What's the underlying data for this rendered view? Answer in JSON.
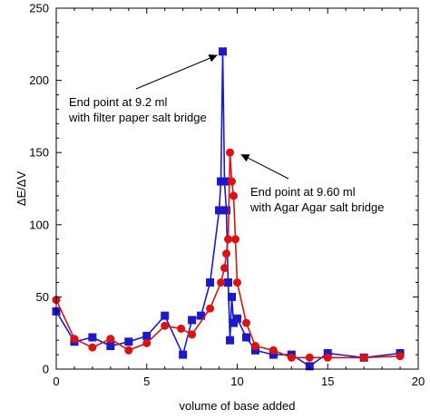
{
  "chart_data": {
    "type": "line",
    "title": "",
    "xlabel": "volume of base added",
    "ylabel": "ΔE/ΔV",
    "xlim": [
      0,
      20
    ],
    "ylim": [
      0,
      250
    ],
    "x_ticks": [
      0,
      5,
      10,
      15,
      20
    ],
    "y_ticks": [
      0,
      50,
      100,
      150,
      200,
      250
    ],
    "grid": false,
    "series": [
      {
        "color": "#1a1acc",
        "marker": "square",
        "x": [
          0,
          1,
          2,
          3,
          4,
          5,
          6,
          7,
          7.5,
          8,
          8.5,
          9,
          9.1,
          9.2,
          9.3,
          9.4,
          9.5,
          9.6,
          9.7,
          9.8,
          10,
          10.5,
          11,
          12,
          13,
          14,
          15,
          17,
          19
        ],
        "y": [
          40,
          19,
          22,
          16,
          19,
          23,
          37,
          10,
          34,
          37,
          60,
          110,
          130,
          220,
          130,
          110,
          60,
          20,
          50,
          32,
          35,
          22,
          13,
          10,
          10,
          2,
          11,
          8,
          11
        ]
      },
      {
        "color": "#dd1111",
        "marker": "circle",
        "x": [
          0,
          1,
          2,
          3,
          4,
          5,
          6,
          6.9,
          7.5,
          8.5,
          9.1,
          9.3,
          9.4,
          9.5,
          9.6,
          9.7,
          9.8,
          9.9,
          10,
          10.5,
          11,
          12,
          13,
          14,
          15,
          17,
          19
        ],
        "y": [
          48,
          21,
          15,
          21,
          13,
          18,
          30,
          28,
          24,
          42,
          60,
          70,
          80,
          90,
          150,
          130,
          120,
          90,
          60,
          32,
          16,
          13,
          8,
          8,
          8,
          8,
          9
        ]
      }
    ],
    "annotations": [
      {
        "lines": [
          "End point at 9.2 ml",
          "with filter paper salt bridge"
        ],
        "arrow_to": [
          9.2,
          220
        ]
      },
      {
        "lines": [
          "End point at 9.60 ml",
          "with Agar Agar salt bridge"
        ],
        "arrow_to": [
          9.6,
          150
        ]
      }
    ]
  }
}
